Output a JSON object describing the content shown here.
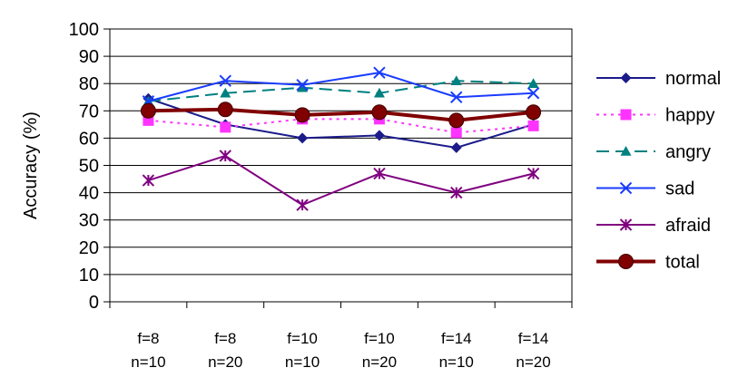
{
  "chart_data": {
    "type": "line",
    "title": "",
    "ylabel": "Accuracy (%)",
    "xlabel": "",
    "ylim": [
      0,
      100
    ],
    "yticks": [
      0,
      10,
      20,
      30,
      40,
      50,
      60,
      70,
      80,
      90,
      100
    ],
    "grid": "horizontal",
    "legend_position": "right",
    "categories": [
      [
        "f=8",
        "n=10"
      ],
      [
        "f=8",
        "n=20"
      ],
      [
        "f=10",
        "n=10"
      ],
      [
        "f=10",
        "n=20"
      ],
      [
        "f=14",
        "n=10"
      ],
      [
        "f=14",
        "n=20"
      ]
    ],
    "series": [
      {
        "name": "normal",
        "values": [
          74.5,
          65,
          60,
          61,
          56.5,
          65
        ],
        "color": "#1b1b8a",
        "dash": "solid",
        "marker": "diamond"
      },
      {
        "name": "happy",
        "values": [
          66.5,
          64,
          67,
          67,
          62,
          64.5
        ],
        "color": "#ff33ff",
        "dash": "dot",
        "marker": "square"
      },
      {
        "name": "angry",
        "values": [
          73.5,
          76.5,
          78.5,
          76.5,
          81,
          80
        ],
        "color": "#008080",
        "dash": "dash",
        "marker": "triangle"
      },
      {
        "name": "sad",
        "values": [
          73.5,
          81,
          79.5,
          84,
          75,
          76.5
        ],
        "color": "#1a3cff",
        "dash": "solid",
        "marker": "x"
      },
      {
        "name": "afraid",
        "values": [
          44.5,
          53.5,
          35.5,
          47,
          40,
          47
        ],
        "color": "#800080",
        "dash": "solid",
        "marker": "star"
      },
      {
        "name": "total",
        "values": [
          70,
          70.5,
          68.5,
          69.5,
          66.5,
          69.5
        ],
        "color": "#800000",
        "dash": "solid",
        "marker": "circle",
        "thick": true
      }
    ]
  }
}
